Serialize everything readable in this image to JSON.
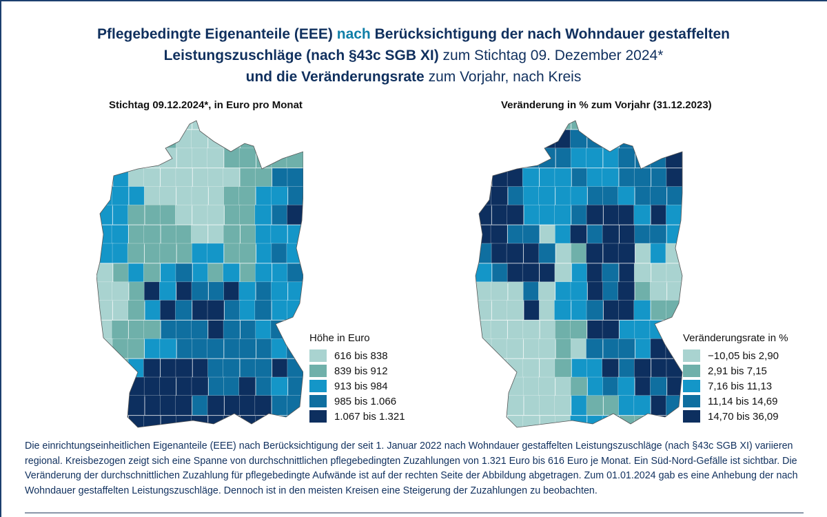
{
  "title": {
    "line1_part1": "Pflegebedingte Eigenanteile (EEE) ",
    "line1_accent": "nach",
    "line1_part2": " Berücksichtigung der nach Wohndauer gestaffelten",
    "line2_bold": "Leistungszuschläge (nach §43c SGB XI)",
    "line2_light": " zum Stichtag 09. Dezember 2024*",
    "line3_bold": "und die Veränderungsrate",
    "line3_light": " zum Vorjahr, nach Kreis"
  },
  "colors": {
    "class1": "#a9d3d0",
    "class2": "#6fb0aa",
    "class3": "#1496c8",
    "class4": "#0f6fa0",
    "class5": "#0d2f5f",
    "title": "#10305e",
    "accent": "#0f7fa8"
  },
  "left_map": {
    "subtitle": "Stichtag 09.12.2024*, in Euro pro Monat",
    "legend_title": "Höhe in Euro",
    "legend": [
      {
        "label": "616 bis 838",
        "class": "class1"
      },
      {
        "label": "839 bis 912",
        "class": "class2"
      },
      {
        "label": "913 bis 984",
        "class": "class3"
      },
      {
        "label": "985 bis 1.066",
        "class": "class4"
      },
      {
        "label": "1.067 bis 1.321",
        "class": "class5"
      }
    ]
  },
  "right_map": {
    "subtitle": "Veränderung in % zum Vorjahr (31.12.2023)",
    "legend_title": "Veränderungsrate in %",
    "legend": [
      {
        "label": "−10,05 bis 2,90",
        "class": "class1"
      },
      {
        "label": "2,91 bis 7,15",
        "class": "class2"
      },
      {
        "label": "7,16 bis 11,13",
        "class": "class3"
      },
      {
        "label": "11,14 bis 14,69",
        "class": "class4"
      },
      {
        "label": "14,70 bis 36,09",
        "class": "class5"
      }
    ]
  },
  "description": "Die einrichtungseinheitlichen Eigenanteile (EEE) nach Berücksichtigung der seit 1. Januar 2022 nach Wohndauer gestaffelten Leistungszuschläge (nach §43c SGB XI) variieren regional. Kreisbezogen zeigt sich eine Spanne von durchschnittlichen pflegebedingten Zuzahlungen von 1.321 Euro bis 616 Euro je Monat. Ein Süd-Nord-Gefälle ist sichtbar. Die Veränderung der durchschnittlichen Zuzahlung für pflegebedingte Aufwände ist auf der rechten Seite der Abbildung abgetragen. Zum 01.01.2024 gab es eine Anhebung der nach Wohndauer gestaffelten Leistungszuschläge. Dennoch ist in den meisten Kreisen eine Steigerung der Zuzahlungen zu beobachten.",
  "region_classes": {
    "left": [
      "1111111111111",
      "1112211122222",
      "1111111122222",
      "3311111112244",
      "3331111122334",
      "3322211122345",
      "3322221122333",
      "3322223322343",
      "1232343232334",
      "1125354453433",
      "1123545543433",
      "1222444544343",
      "1223344444434",
      "2235555444454",
      "2255555445434",
      "4555554555544",
      "4555555555545"
    ],
    "right": [
      "3222222333333",
      "4455554434444",
      "5554443334445",
      "5553334334445",
      "5543333443444",
      "5553334555353",
      "5544135455443",
      "4555412555131",
      "3455513545111",
      "1114133545211",
      "1115133455322",
      "1111122553332",
      "1111121444355",
      "1111123354555",
      "1111112343545",
      "2111113223354",
      "2111113332255"
    ]
  }
}
